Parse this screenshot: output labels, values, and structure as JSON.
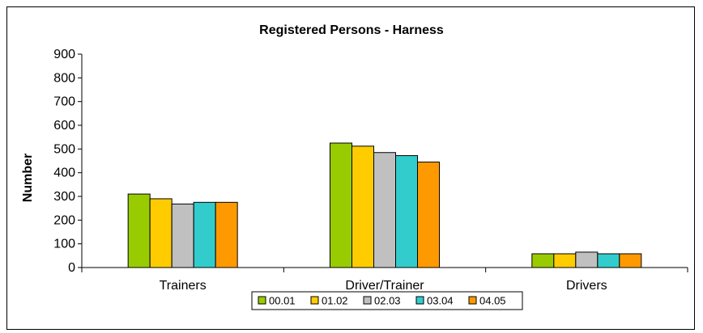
{
  "chart_data": {
    "type": "bar",
    "title": "Registered Persons - Harness",
    "xlabel": "",
    "ylabel": "Number",
    "ylim": [
      0,
      900
    ],
    "yticks": [
      0,
      100,
      200,
      300,
      400,
      500,
      600,
      700,
      800,
      900
    ],
    "categories": [
      "Trainers",
      "Driver/Trainer",
      "Drivers"
    ],
    "series": [
      {
        "name": "00.01",
        "color": "#99cc00",
        "values": [
          310,
          525,
          58
        ]
      },
      {
        "name": "01.02",
        "color": "#ffcc00",
        "values": [
          290,
          512,
          58
        ]
      },
      {
        "name": "02.03",
        "color": "#c0c0c0",
        "values": [
          268,
          485,
          65
        ]
      },
      {
        "name": "03.04",
        "color": "#33cccc",
        "values": [
          275,
          472,
          58
        ]
      },
      {
        "name": "04.05",
        "color": "#ff9900",
        "values": [
          275,
          445,
          58
        ]
      }
    ],
    "grid": false,
    "legend_position": "bottom"
  }
}
